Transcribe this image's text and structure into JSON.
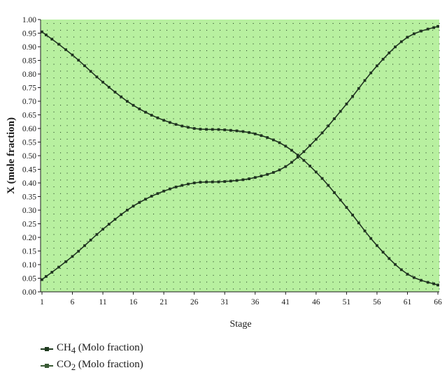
{
  "chart_data": {
    "type": "line",
    "xlabel": "Stage",
    "ylabel": "X (mole fraction)",
    "xlim": [
      1,
      60
    ],
    "ylim": [
      0,
      1.0
    ],
    "xticks": [
      "1",
      "6",
      "11",
      "16",
      "21",
      "26",
      "31",
      "36",
      "41",
      "46",
      "51",
      "56",
      "61",
      "66"
    ],
    "yticks": [
      "0.00",
      "0.05",
      "0.10",
      "0.15",
      "0.20",
      "0.25",
      "0.30",
      "0.35",
      "0.40",
      "0.45",
      "0.50",
      "0.55",
      "0.60",
      "0.65",
      "0.70",
      "0.75",
      "0.80",
      "0.85",
      "0.90",
      "0.95",
      "1.00"
    ],
    "grid": "dotted",
    "plot_background": "#b8f0a0",
    "series": [
      {
        "name": "CH4 (Molo fraction)",
        "legend_main": "CH",
        "legend_sub": "4",
        "legend_rest": " (Molo fraction)",
        "color": "#1f3a1f",
        "x": [
          1,
          6,
          11,
          16,
          21,
          26,
          31,
          36,
          41,
          46,
          51,
          56,
          61,
          66
        ],
        "values": [
          0.955,
          0.87,
          0.77,
          0.685,
          0.63,
          0.6,
          0.595,
          0.58,
          0.535,
          0.44,
          0.31,
          0.17,
          0.065,
          0.025
        ]
      },
      {
        "name": "CO2 (Molo fraction)",
        "legend_main": "CO",
        "legend_sub": "2",
        "legend_rest": " (Molo fraction)",
        "color": "#3a5a35",
        "x": [
          1,
          6,
          11,
          16,
          21,
          26,
          31,
          36,
          41,
          46,
          51,
          56,
          61,
          66
        ],
        "values": [
          0.045,
          0.13,
          0.23,
          0.315,
          0.37,
          0.4,
          0.405,
          0.42,
          0.46,
          0.56,
          0.69,
          0.83,
          0.935,
          0.975
        ]
      }
    ]
  }
}
